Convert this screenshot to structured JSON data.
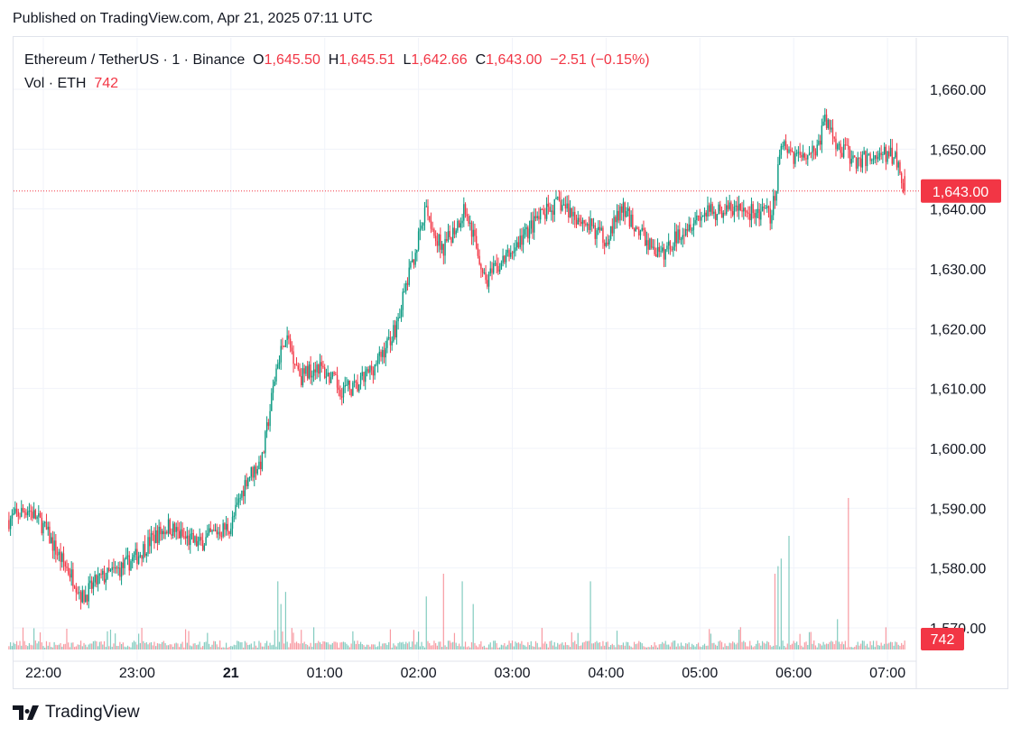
{
  "published": "Published on TradingView.com, Apr 21, 2025 07:11 UTC",
  "legend": {
    "symbol": "Ethereum / TetherUS · 1 · Binance",
    "o_label": "O",
    "o": "1,645.50",
    "h_label": "H",
    "h": "1,645.51",
    "l_label": "L",
    "l": "1,642.66",
    "c_label": "C",
    "c": "1,643.00",
    "change": "−2.51 (−0.15%)",
    "vol_label": "Vol · ETH",
    "vol": "742"
  },
  "brand": "TradingView",
  "colors": {
    "up": "#089981",
    "down": "#f23645",
    "grid": "#f0f3fa"
  },
  "chart_data": {
    "type": "candlestick",
    "interval_minutes": 1,
    "y_ticks": [
      "1,660.00",
      "1,650.00",
      "1,640.00",
      "1,630.00",
      "1,620.00",
      "1,610.00",
      "1,600.00",
      "1,590.00",
      "1,580.00",
      "1,570.00"
    ],
    "y_tick_values": [
      1660,
      1650,
      1640,
      1630,
      1620,
      1610,
      1600,
      1590,
      1580,
      1570
    ],
    "ylim": [
      1565,
      1668
    ],
    "x_ticks": [
      {
        "label": "22:00",
        "min": 0
      },
      {
        "label": "23:00",
        "min": 60
      },
      {
        "label": "21",
        "min": 120
      },
      {
        "label": "01:00",
        "min": 180
      },
      {
        "label": "02:00",
        "min": 240
      },
      {
        "label": "03:00",
        "min": 300
      },
      {
        "label": "04:00",
        "min": 360
      },
      {
        "label": "05:00",
        "min": 420
      },
      {
        "label": "06:00",
        "min": 480
      },
      {
        "label": "07:00",
        "min": 540
      }
    ],
    "last_price": "1,643.00",
    "last_price_value": 1643,
    "last_volume": "742",
    "close_path_minutes_from_2200": [
      [
        -22,
        1588
      ],
      [
        -10,
        1590
      ],
      [
        0,
        1587
      ],
      [
        10,
        1582
      ],
      [
        20,
        1578
      ],
      [
        25,
        1575
      ],
      [
        35,
        1578
      ],
      [
        50,
        1580
      ],
      [
        60,
        1582
      ],
      [
        70,
        1585
      ],
      [
        80,
        1587
      ],
      [
        90,
        1585
      ],
      [
        100,
        1584
      ],
      [
        110,
        1586
      ],
      [
        120,
        1587
      ],
      [
        130,
        1595
      ],
      [
        140,
        1598
      ],
      [
        150,
        1615
      ],
      [
        155,
        1619
      ],
      [
        165,
        1612
      ],
      [
        175,
        1614
      ],
      [
        190,
        1610
      ],
      [
        200,
        1610
      ],
      [
        215,
        1615
      ],
      [
        225,
        1620
      ],
      [
        235,
        1630
      ],
      [
        245,
        1640
      ],
      [
        255,
        1633
      ],
      [
        270,
        1640
      ],
      [
        283,
        1628
      ],
      [
        300,
        1633
      ],
      [
        315,
        1638
      ],
      [
        330,
        1641
      ],
      [
        345,
        1638
      ],
      [
        360,
        1635
      ],
      [
        370,
        1640
      ],
      [
        385,
        1635
      ],
      [
        395,
        1632
      ],
      [
        410,
        1637
      ],
      [
        420,
        1639
      ],
      [
        440,
        1640
      ],
      [
        465,
        1639
      ],
      [
        468,
        1642
      ],
      [
        472,
        1652
      ],
      [
        480,
        1649
      ],
      [
        495,
        1650
      ],
      [
        500,
        1655
      ],
      [
        510,
        1650
      ],
      [
        520,
        1648
      ],
      [
        535,
        1649
      ],
      [
        545,
        1649
      ],
      [
        551,
        1643
      ]
    ],
    "volume_spikes_minutes": [
      [
        150,
        0.45
      ],
      [
        152,
        0.3
      ],
      [
        155,
        0.38
      ],
      [
        245,
        0.35
      ],
      [
        256,
        0.5
      ],
      [
        268,
        0.45
      ],
      [
        275,
        0.3
      ],
      [
        350,
        0.45
      ],
      [
        468,
        0.5
      ],
      [
        470,
        0.55
      ],
      [
        472,
        0.6
      ],
      [
        477,
        0.75
      ],
      [
        508,
        0.2
      ],
      [
        515,
        1.0
      ]
    ]
  }
}
